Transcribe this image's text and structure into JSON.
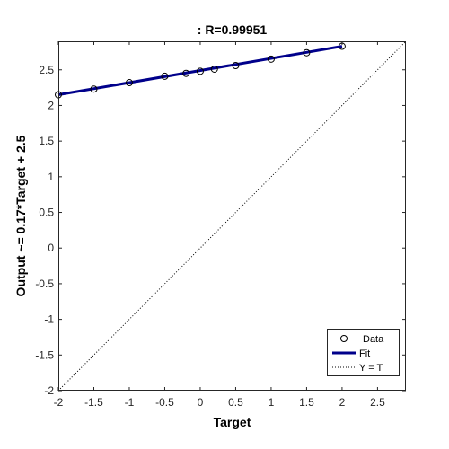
{
  "chart_data": {
    "type": "scatter",
    "title": ": R=0.99951",
    "xlabel": "Target",
    "ylabel": "Output ~= 0.17*Target + 2.5",
    "xlim": [
      -2,
      2.9
    ],
    "ylim": [
      -2,
      2.9
    ],
    "xticks": [
      -2,
      -1.5,
      -1,
      -0.5,
      0,
      0.5,
      1,
      1.5,
      2,
      2.5
    ],
    "yticks": [
      -2,
      -1.5,
      -1,
      -0.5,
      0,
      0.5,
      1,
      1.5,
      2,
      2.5
    ],
    "xtick_labels": [
      "-2",
      "-1.5",
      "-1",
      "-0.5",
      "0",
      "0.5",
      "1",
      "1.5",
      "2",
      "2.5"
    ],
    "ytick_labels": [
      "-2",
      "-1.5",
      "-1",
      "-0.5",
      "0",
      "0.5",
      "1",
      "1.5",
      "2",
      "2.5"
    ],
    "grid": false,
    "legend_position": "bottom-right",
    "series": [
      {
        "name": "Data",
        "kind": "markers",
        "marker": "circle-open",
        "color": "#000000",
        "x": [
          -2,
          -1.5,
          -1,
          -0.5,
          -0.2,
          0,
          0.2,
          0.5,
          1,
          1.5,
          2
        ],
        "y": [
          2.15,
          2.23,
          2.32,
          2.41,
          2.45,
          2.48,
          2.51,
          2.56,
          2.65,
          2.74,
          2.83
        ]
      },
      {
        "name": "Fit",
        "kind": "line",
        "color": "#00008b",
        "x": [
          -2,
          2
        ],
        "y": [
          2.15,
          2.83
        ]
      },
      {
        "name": "Y = T",
        "kind": "dotted-line",
        "color": "#000000",
        "x": [
          -2,
          2.9
        ],
        "y": [
          -2,
          2.9
        ]
      }
    ]
  }
}
